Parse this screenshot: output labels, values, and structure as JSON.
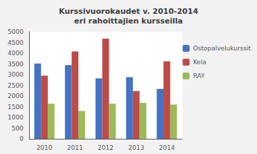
{
  "chart_data": {
    "type": "bar",
    "title": "Kurssivuorokaudet v. 2010-2014\neri rahoittajien kursseilla",
    "categories": [
      "2010",
      "2011",
      "2012",
      "2013",
      "2014"
    ],
    "series": [
      {
        "name": "Ostopalvelukurssit",
        "color": "#4472C4",
        "values": [
          3520,
          3440,
          2820,
          2880,
          2330
        ]
      },
      {
        "name": "Kela",
        "color": "#BE4B48",
        "values": [
          2950,
          4080,
          4680,
          2230,
          3620
        ]
      },
      {
        "name": "RAY",
        "color": "#9BBB59",
        "values": [
          1640,
          1300,
          1640,
          1680,
          1600
        ]
      }
    ],
    "ylim": [
      0,
      5000
    ],
    "yticks": [
      0,
      500,
      1000,
      1500,
      2000,
      2500,
      3000,
      3500,
      4000,
      4500,
      5000
    ],
    "grid": false,
    "legend": "right"
  }
}
